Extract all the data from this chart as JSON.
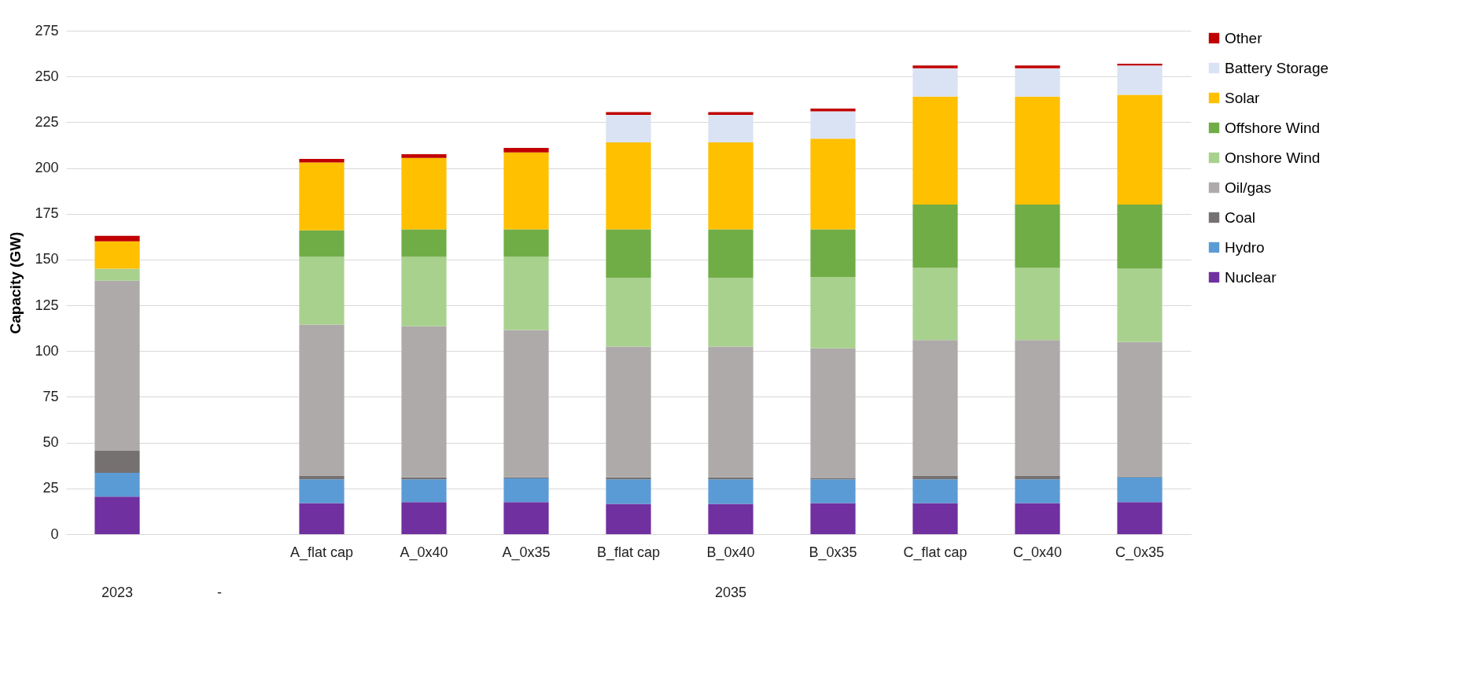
{
  "chart_data": {
    "type": "bar",
    "stacked": true,
    "ylabel": "Capacity (GW)",
    "categories": [
      null,
      null,
      "A_flat cap",
      "A_0x40",
      "A_0x35",
      "B_flat cap",
      "B_0x40",
      "B_0x35",
      "C_flat cap",
      "C_0x40",
      "C_0x35"
    ],
    "annotations": [
      "2023",
      "-",
      "2035"
    ],
    "ylim": [
      0,
      275
    ],
    "yticks": [
      0,
      25,
      50,
      75,
      100,
      125,
      150,
      175,
      200,
      225,
      250,
      275
    ],
    "grid": "y",
    "legend": "right",
    "series": [
      {
        "name": "Nuclear",
        "color": "#7030a0",
        "values": [
          20.5,
          null,
          17,
          17.5,
          17.5,
          16.5,
          16.5,
          17,
          17,
          17,
          17.5
        ]
      },
      {
        "name": "Hydro",
        "color": "#5b9bd5",
        "values": [
          13,
          null,
          13,
          12.5,
          13,
          13.5,
          13.5,
          13,
          13,
          13,
          13.5
        ]
      },
      {
        "name": "Coal",
        "color": "#767171",
        "values": [
          12,
          null,
          2,
          1,
          0.5,
          1,
          1,
          0.5,
          2,
          2,
          0.5
        ]
      },
      {
        "name": "Oil/gas",
        "color": "#aeaaaa",
        "values": [
          93,
          null,
          82.5,
          82.5,
          80.5,
          71.5,
          71.5,
          71,
          74,
          74,
          73.5
        ]
      },
      {
        "name": "Onshore Wind",
        "color": "#a9d18e",
        "values": [
          6.5,
          null,
          37,
          38,
          40,
          37.5,
          37.5,
          39,
          39.5,
          39.5,
          40
        ]
      },
      {
        "name": "Offshore Wind",
        "color": "#70ad47",
        "values": [
          0,
          null,
          14.5,
          15,
          15,
          26.5,
          26.5,
          26,
          34.5,
          34.5,
          35
        ]
      },
      {
        "name": "Solar",
        "color": "#ffc000",
        "values": [
          15,
          null,
          37,
          39,
          42,
          47.5,
          47.5,
          49.5,
          59,
          59,
          60
        ]
      },
      {
        "name": "Battery Storage",
        "color": "#dae3f3",
        "values": [
          0,
          null,
          0,
          0,
          0,
          15,
          15,
          15,
          15.5,
          15.5,
          16
        ]
      },
      {
        "name": "Other",
        "color": "#c00000",
        "values": [
          3,
          null,
          2,
          2,
          2.5,
          1.5,
          1.5,
          1.5,
          1.5,
          1.5,
          1
        ]
      }
    ]
  }
}
